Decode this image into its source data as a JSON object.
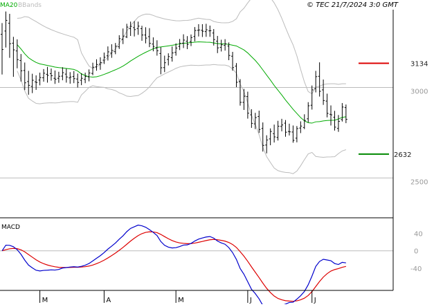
{
  "header": {
    "ma_label": "MA20",
    "bands_label": "BBands",
    "copyright": "© TEC 21/7/2024 3:0 GMT"
  },
  "colors": {
    "ma": "#00aa00",
    "bands": "#bbbbbb",
    "price": "#000000",
    "resistance": "#dd0000",
    "support": "#008800",
    "macd": "#0000cc",
    "signal": "#dd0000",
    "grid": "#bbbbbb",
    "frame": "#000000"
  },
  "chart_data": [
    {
      "type": "ohlc",
      "name": "price",
      "x_months": [
        "M",
        "A",
        "M",
        "J",
        "J"
      ],
      "y_ticks": [
        "3000",
        "2500"
      ],
      "y_tick_values": [
        3000,
        2500
      ],
      "ylim": [
        2280,
        3430
      ],
      "levels": [
        {
          "label": "3134",
          "value": 3134,
          "color": "#dd0000"
        },
        {
          "label": "2632",
          "value": 2632,
          "color": "#008800"
        }
      ],
      "ohlc": [
        [
          3294,
          3356,
          3072,
          3210
        ],
        [
          3312,
          3420,
          3221,
          3371
        ],
        [
          3355,
          3407,
          3164,
          3242
        ],
        [
          3245,
          3280,
          3059,
          3208
        ],
        [
          3202,
          3266,
          3106,
          3154
        ],
        [
          3149,
          3185,
          3033,
          3092
        ],
        [
          3094,
          3138,
          2986,
          3026
        ],
        [
          3033,
          3092,
          2960,
          3012
        ],
        [
          3006,
          3076,
          2969,
          3040
        ],
        [
          3031,
          3067,
          2987,
          3028
        ],
        [
          3041,
          3082,
          3012,
          3055
        ],
        [
          3054,
          3102,
          3032,
          3079
        ],
        [
          3073,
          3114,
          3027,
          3067
        ],
        [
          3077,
          3105,
          3038,
          3065
        ],
        [
          3051,
          3094,
          3020,
          3046
        ],
        [
          3051,
          3087,
          3026,
          3062
        ],
        [
          3063,
          3112,
          3040,
          3082
        ],
        [
          3074,
          3104,
          3027,
          3058
        ],
        [
          3053,
          3085,
          3021,
          3058
        ],
        [
          3061,
          3091,
          3024,
          3049
        ],
        [
          3047,
          3077,
          3000,
          3028
        ],
        [
          3040,
          3079,
          3013,
          3051
        ],
        [
          3045,
          3082,
          3024,
          3061
        ],
        [
          3059,
          3100,
          3034,
          3080
        ],
        [
          3078,
          3137,
          3068,
          3112
        ],
        [
          3114,
          3156,
          3093,
          3127
        ],
        [
          3129,
          3167,
          3098,
          3138
        ],
        [
          3151,
          3193,
          3130,
          3167
        ],
        [
          3175,
          3227,
          3149,
          3197
        ],
        [
          3190,
          3239,
          3164,
          3205
        ],
        [
          3198,
          3246,
          3184,
          3228
        ],
        [
          3225,
          3289,
          3213,
          3270
        ],
        [
          3266,
          3326,
          3240,
          3284
        ],
        [
          3280,
          3352,
          3273,
          3334
        ],
        [
          3325,
          3364,
          3285,
          3338
        ],
        [
          3331,
          3367,
          3282,
          3320
        ],
        [
          3326,
          3364,
          3291,
          3339
        ],
        [
          3325,
          3341,
          3258,
          3290
        ],
        [
          3290,
          3333,
          3244,
          3273
        ],
        [
          3281,
          3328,
          3223,
          3244
        ],
        [
          3240,
          3277,
          3200,
          3227
        ],
        [
          3218,
          3261,
          3176,
          3203
        ],
        [
          3188,
          3223,
          3073,
          3109
        ],
        [
          3110,
          3176,
          3085,
          3137
        ],
        [
          3155,
          3189,
          3122,
          3171
        ],
        [
          3165,
          3227,
          3143,
          3191
        ],
        [
          3194,
          3244,
          3176,
          3218
        ],
        [
          3227,
          3268,
          3207,
          3244
        ],
        [
          3245,
          3294,
          3218,
          3262
        ],
        [
          3256,
          3284,
          3212,
          3238
        ],
        [
          3254,
          3293,
          3229,
          3276
        ],
        [
          3282,
          3334,
          3255,
          3315
        ],
        [
          3316,
          3350,
          3282,
          3318
        ],
        [
          3316,
          3350,
          3279,
          3311
        ],
        [
          3309,
          3352,
          3280,
          3319
        ],
        [
          3313,
          3342,
          3280,
          3314
        ],
        [
          3301,
          3323,
          3232,
          3265
        ],
        [
          3256,
          3285,
          3190,
          3219
        ],
        [
          3222,
          3264,
          3199,
          3236
        ],
        [
          3233,
          3267,
          3204,
          3241
        ],
        [
          3229,
          3249,
          3151,
          3177
        ],
        [
          3173,
          3197,
          3093,
          3110
        ],
        [
          3118,
          3135,
          3002,
          3029
        ],
        [
          3033,
          3046,
          2900,
          2918
        ],
        [
          2918,
          2992,
          2876,
          2952
        ],
        [
          2950,
          2977,
          2828,
          2858
        ],
        [
          2849,
          2880,
          2777,
          2802
        ],
        [
          2799,
          2860,
          2770,
          2834
        ],
        [
          2840,
          2872,
          2749,
          2768
        ],
        [
          2774,
          2807,
          2646,
          2680
        ],
        [
          2682,
          2736,
          2636,
          2710
        ],
        [
          2716,
          2774,
          2681,
          2757
        ],
        [
          2745,
          2795,
          2696,
          2727
        ],
        [
          2724,
          2816,
          2707,
          2786
        ],
        [
          2785,
          2827,
          2758,
          2793
        ],
        [
          2803,
          2820,
          2728,
          2753
        ],
        [
          2757,
          2800,
          2735,
          2755
        ],
        [
          2754,
          2790,
          2695,
          2708
        ],
        [
          2720,
          2787,
          2697,
          2773
        ],
        [
          2776,
          2813,
          2748,
          2787
        ],
        [
          2779,
          2852,
          2770,
          2818
        ],
        [
          2827,
          2919,
          2807,
          2899
        ],
        [
          2902,
          3011,
          2878,
          2987
        ],
        [
          2994,
          3092,
          2973,
          3060
        ],
        [
          3062,
          3139,
          2950,
          2979
        ],
        [
          2987,
          3044,
          2904,
          2928
        ],
        [
          2925,
          2966,
          2835,
          2857
        ],
        [
          2852,
          2901,
          2790,
          2849
        ],
        [
          2836,
          2871,
          2762,
          2781
        ],
        [
          2774,
          2848,
          2755,
          2813
        ],
        [
          2823,
          2914,
          2812,
          2892
        ],
        [
          2889,
          2906,
          2803,
          2824
        ]
      ]
    },
    {
      "type": "line",
      "name": "macd",
      "title": "MACD",
      "y_ticks": [
        "40",
        "0",
        "-40"
      ],
      "y_tick_values": [
        40,
        0,
        -40
      ],
      "ylim": [
        -90,
        75
      ]
    }
  ]
}
